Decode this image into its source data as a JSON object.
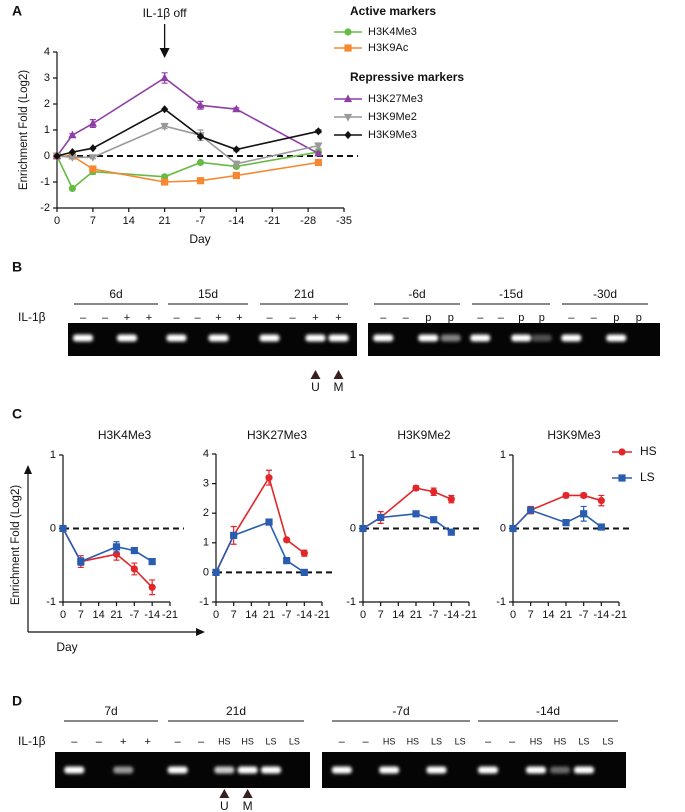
{
  "panel_labels": [
    "A",
    "B",
    "C",
    "D"
  ],
  "chart_data": [
    {
      "type": "line",
      "x_label": "Day",
      "y_label": "Enrichment Fold (Log2)",
      "annotation": {
        "text": "IL-1β off",
        "x": 21
      },
      "legend_titles": [
        "Active markers",
        "Repressive markers"
      ],
      "x": [
        0,
        3,
        7,
        21,
        28,
        35,
        51
      ],
      "xlim": [
        0,
        56
      ],
      "xticks": [
        0,
        7,
        14,
        21,
        {
          "value": 28,
          "label": "-7"
        },
        {
          "value": 35,
          "label": "-14"
        },
        {
          "value": 42,
          "label": "-21"
        },
        {
          "value": 49,
          "label": "-28"
        },
        {
          "value": 56,
          "label": "-35"
        }
      ],
      "ylim": [
        -2,
        4
      ],
      "yticks": [
        -2,
        -1,
        0,
        1,
        2,
        3,
        4
      ],
      "reference_line": 0,
      "series": [
        {
          "name": "H3K4Me3",
          "color": "#66bb44",
          "marker": "circle",
          "values": [
            0,
            -1.25,
            -0.6,
            -0.8,
            -0.25,
            -0.4,
            0.15
          ],
          "errors": [
            0,
            0.05,
            0.1,
            0.05,
            0.05,
            0.05,
            0.1
          ]
        },
        {
          "name": "H3K9Ac",
          "color": "#f7882f",
          "marker": "square",
          "values": [
            0,
            0,
            -0.5,
            -1.0,
            -0.95,
            -0.75,
            -0.25
          ],
          "errors": [
            0,
            0.05,
            0.1,
            0.05,
            0.05,
            0.05,
            0.1
          ]
        },
        {
          "name": "H3K27Me3",
          "color": "#8e3fa6",
          "marker": "triangle",
          "values": [
            0,
            0.8,
            1.25,
            3.0,
            1.95,
            1.8,
            0.1
          ],
          "errors": [
            0,
            0.05,
            0.15,
            0.2,
            0.15,
            0.05,
            0.05
          ]
        },
        {
          "name": "H3K9Me2",
          "color": "#999999",
          "marker": "triangle-down",
          "values": [
            0,
            -0.05,
            -0.05,
            1.15,
            0.8,
            -0.3,
            0.4
          ],
          "errors": [
            0,
            0.05,
            0.05,
            0.1,
            0.2,
            0.1,
            0.1
          ]
        },
        {
          "name": "H3K9Me3",
          "color": "#111111",
          "marker": "diamond",
          "values": [
            0,
            0.15,
            0.3,
            1.8,
            0.75,
            0.25,
            0.95
          ],
          "errors": [
            0,
            0,
            0,
            0,
            0.05,
            0.05,
            0.05
          ]
        }
      ]
    },
    {
      "type": "line",
      "title": "H3K4Me3",
      "x_label": "Day",
      "y_label": "Enrichment Fold (Log2)",
      "x": [
        0,
        7,
        21,
        28,
        35
      ],
      "xlim": [
        0,
        42
      ],
      "xticks": [
        0,
        7,
        14,
        21,
        {
          "value": 28,
          "label": "-7"
        },
        {
          "value": 35,
          "label": "-14"
        },
        {
          "value": 42,
          "label": "-21"
        }
      ],
      "ylim": [
        -1,
        1
      ],
      "yticks": [
        -1,
        0,
        1
      ],
      "reference_line": 0,
      "series": [
        {
          "color": "#e3262a",
          "marker": "circle",
          "values": [
            0,
            -0.45,
            -0.35,
            -0.55,
            -0.8
          ],
          "errors": [
            0,
            0.08,
            0.08,
            0.08,
            0.1
          ]
        },
        {
          "color": "#2a5db0",
          "marker": "square",
          "values": [
            0,
            -0.45,
            -0.25,
            -0.3,
            -0.45
          ],
          "errors": [
            0,
            0.05,
            0.07,
            0.03,
            0.03
          ]
        }
      ]
    },
    {
      "type": "line",
      "title": "H3K27Me3",
      "x": [
        0,
        7,
        21,
        28,
        35
      ],
      "xlim": [
        0,
        42
      ],
      "xticks": [
        0,
        7,
        14,
        21,
        {
          "value": 28,
          "label": "-7"
        },
        {
          "value": 35,
          "label": "-14"
        },
        {
          "value": 42,
          "label": "-21"
        }
      ],
      "ylim": [
        -1,
        4
      ],
      "yticks": [
        -1,
        0,
        1,
        2,
        3,
        4
      ],
      "reference_line": 0,
      "series": [
        {
          "color": "#e3262a",
          "marker": "circle",
          "values": [
            0,
            1.25,
            3.2,
            1.1,
            0.65
          ],
          "errors": [
            0,
            0.3,
            0.25,
            0.05,
            0.1
          ]
        },
        {
          "color": "#2a5db0",
          "marker": "square",
          "values": [
            0,
            1.25,
            1.7,
            0.4,
            0
          ],
          "errors": [
            0,
            0.05,
            0.03,
            0.1,
            0.03
          ]
        }
      ]
    },
    {
      "type": "line",
      "title": "H3K9Me2",
      "x": [
        0,
        7,
        21,
        28,
        35
      ],
      "xlim": [
        0,
        42
      ],
      "xticks": [
        0,
        7,
        14,
        21,
        {
          "value": 28,
          "label": "-7"
        },
        {
          "value": 35,
          "label": "-14"
        },
        {
          "value": 42,
          "label": "-21"
        }
      ],
      "ylim": [
        -1,
        1
      ],
      "yticks": [
        -1,
        0,
        1
      ],
      "reference_line": 0,
      "series": [
        {
          "color": "#e3262a",
          "marker": "circle",
          "values": [
            0,
            0.15,
            0.55,
            0.5,
            0.4
          ],
          "errors": [
            0,
            0.08,
            0.03,
            0.05,
            0.05
          ]
        },
        {
          "color": "#2a5db0",
          "marker": "square",
          "values": [
            0,
            0.15,
            0.2,
            0.12,
            -0.05
          ],
          "errors": [
            0,
            0.03,
            0.03,
            0.03,
            0.03
          ]
        }
      ]
    },
    {
      "type": "line",
      "title": "H3K9Me3",
      "x": [
        0,
        7,
        21,
        28,
        35
      ],
      "xlim": [
        0,
        42
      ],
      "xticks": [
        0,
        7,
        14,
        21,
        {
          "value": 28,
          "label": "-7"
        },
        {
          "value": 35,
          "label": "-14"
        },
        {
          "value": 42,
          "label": "-21"
        }
      ],
      "ylim": [
        -1,
        1
      ],
      "yticks": [
        -1,
        0,
        1
      ],
      "reference_line": 0,
      "series": [
        {
          "color": "#e3262a",
          "marker": "circle",
          "values": [
            0,
            0.25,
            0.45,
            0.45,
            0.38
          ],
          "errors": [
            0,
            0.05,
            0.03,
            0.03,
            0.07
          ]
        },
        {
          "color": "#2a5db0",
          "marker": "square",
          "values": [
            0,
            0.25,
            0.08,
            0.2,
            0.02
          ],
          "errors": [
            0,
            0.03,
            0.02,
            0.1,
            0.03
          ]
        }
      ]
    }
  ],
  "shared_legend": [
    {
      "name": "HS",
      "color": "#e3262a",
      "marker": "circle"
    },
    {
      "name": "LS",
      "color": "#2a5db0",
      "marker": "square"
    }
  ],
  "gel_b": {
    "row_label": "IL-1β",
    "markers": [
      "U",
      "M"
    ],
    "groups": [
      {
        "label": "6d",
        "lanes": [
          "–",
          "–",
          "+",
          "+"
        ]
      },
      {
        "label": "15d",
        "lanes": [
          "–",
          "–",
          "+",
          "+"
        ]
      },
      {
        "label": "21d",
        "lanes": [
          "–",
          "–",
          "+",
          "+"
        ]
      },
      {
        "label": "-6d",
        "lanes": [
          "–",
          "–",
          "p",
          "p"
        ]
      },
      {
        "label": "-15d",
        "lanes": [
          "–",
          "–",
          "p",
          "p"
        ]
      },
      {
        "label": "-30d",
        "lanes": [
          "–",
          "–",
          "p",
          "p"
        ]
      }
    ]
  },
  "gel_d": {
    "row_label": "IL-1β",
    "markers": [
      "U",
      "M"
    ],
    "groups": [
      {
        "label": "7d",
        "lanes": [
          "–",
          "–",
          "+",
          "+"
        ]
      },
      {
        "label": "21d",
        "lanes": [
          "–",
          "–",
          "HS",
          "HS",
          "LS",
          "LS"
        ]
      },
      {
        "label": "-7d",
        "lanes": [
          "–",
          "–",
          "HS",
          "HS",
          "LS",
          "LS"
        ]
      },
      {
        "label": "-14d",
        "lanes": [
          "–",
          "–",
          "HS",
          "HS",
          "LS",
          "LS"
        ]
      }
    ]
  }
}
